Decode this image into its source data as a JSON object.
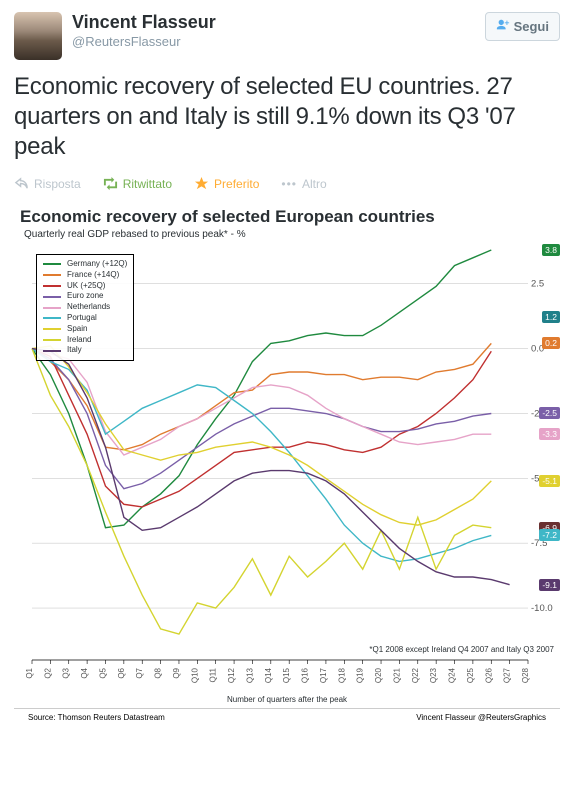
{
  "user": {
    "name": "Vincent Flasseur",
    "handle": "@ReutersFlasseur"
  },
  "follow_label": "Segui",
  "tweet_text": "Economic recovery of selected EU countries. 27 quarters on and Italy is still 9.1% down its Q3 '07 peak",
  "actions": {
    "reply": "Risposta",
    "retweet": "Ritwittato",
    "favorite": "Preferito",
    "more": "Altro"
  },
  "chart": {
    "type": "line",
    "title": "Economic recovery of selected European countries",
    "subtitle": "Quarterly real GDP rebased to previous peak* - %",
    "note": "*Q1 2008 except Ireland Q4 2007 and Italy Q3 2007",
    "x_title": "Number of quarters after the peak",
    "source": "Source: Thomson Reuters Datastream",
    "credit": "Vincent Flasseur @ReutersGraphics",
    "ylim": [
      -12.0,
      3.8
    ],
    "yticks": [
      2.5,
      0.0,
      -2.5,
      -5.0,
      -7.5,
      -10.0
    ],
    "xlabels": [
      "Q1",
      "Q2",
      "Q3",
      "Q4",
      "Q5",
      "Q6",
      "Q7",
      "Q8",
      "Q9",
      "Q10",
      "Q11",
      "Q12",
      "Q13",
      "Q14",
      "Q15",
      "Q16",
      "Q17",
      "Q18",
      "Q19",
      "Q20",
      "Q21",
      "Q22",
      "Q23",
      "Q24",
      "Q25",
      "Q26",
      "Q27",
      "Q28"
    ],
    "grid_color": "#cccccc",
    "background_color": "#ffffff",
    "title_fontsize": 17,
    "label_fontsize": 9,
    "series": [
      {
        "name": "Germany (+12Q)",
        "color": "#1f8a3f",
        "end_val": "3.8",
        "values": [
          0,
          -1.0,
          -2.5,
          -4.5,
          -6.9,
          -6.8,
          -6.1,
          -5.6,
          -4.9,
          -3.7,
          -2.7,
          -1.8,
          -0.5,
          0.2,
          0.3,
          0.5,
          0.6,
          0.5,
          0.5,
          0.9,
          1.4,
          1.9,
          2.4,
          3.2,
          3.5,
          3.8
        ]
      },
      {
        "name": "France (+14Q)",
        "color": "#e07b2f",
        "end_val": "0.2",
        "values": [
          0,
          -0.5,
          -1.2,
          -2.2,
          -3.8,
          -3.9,
          -3.7,
          -3.3,
          -3.0,
          -2.7,
          -2.2,
          -1.7,
          -1.6,
          -1.0,
          -0.9,
          -0.9,
          -1.0,
          -1.0,
          -1.2,
          -1.1,
          -1.1,
          -1.2,
          -0.9,
          -0.8,
          -0.6,
          0.2
        ]
      },
      {
        "name": "UK (+25Q)",
        "color": "#c03030",
        "end_val": null,
        "values": [
          0,
          -0.3,
          -1.8,
          -3.3,
          -5.3,
          -6.0,
          -6.1,
          -5.8,
          -5.5,
          -5.0,
          -4.5,
          -4.0,
          -3.9,
          -3.8,
          -3.8,
          -3.6,
          -3.7,
          -3.9,
          -4.0,
          -3.8,
          -3.3,
          -3.0,
          -2.5,
          -1.9,
          -1.2,
          -0.1
        ]
      },
      {
        "name": "Euro zone",
        "color": "#7a5fa8",
        "end_val": "-2.5",
        "values": [
          0,
          -0.4,
          -1.2,
          -2.5,
          -4.5,
          -5.4,
          -5.2,
          -4.8,
          -4.3,
          -3.8,
          -3.3,
          -2.9,
          -2.6,
          -2.3,
          -2.3,
          -2.4,
          -2.5,
          -2.7,
          -3.0,
          -3.2,
          -3.2,
          -3.1,
          -2.9,
          -2.8,
          -2.6,
          -2.5
        ]
      },
      {
        "name": "Netherlands",
        "color": "#e6a3c8",
        "end_val": "-3.3",
        "values": [
          0,
          -0.2,
          -0.4,
          -1.3,
          -3.2,
          -4.1,
          -3.8,
          -3.5,
          -3.0,
          -2.7,
          -2.3,
          -1.9,
          -1.5,
          -1.4,
          -1.5,
          -1.8,
          -2.3,
          -2.7,
          -3.0,
          -3.3,
          -3.6,
          -3.7,
          -3.6,
          -3.5,
          -3.3,
          -3.3
        ]
      },
      {
        "name": "Portugal",
        "color": "#3fb7c7",
        "end_val": "-7.2",
        "values": [
          0,
          -0.5,
          -0.8,
          -1.6,
          -3.3,
          -2.8,
          -2.3,
          -2.0,
          -1.7,
          -1.4,
          -1.5,
          -2.0,
          -2.5,
          -3.2,
          -4.0,
          -4.9,
          -5.8,
          -6.8,
          -7.5,
          -8.0,
          -8.2,
          -8.1,
          -7.9,
          -7.7,
          -7.4,
          -7.2
        ]
      },
      {
        "name": "Spain",
        "color": "#e0d030",
        "end_val": "-5.1",
        "values": [
          0,
          0.1,
          -0.7,
          -1.7,
          -2.9,
          -3.9,
          -4.1,
          -4.3,
          -4.1,
          -4.0,
          -3.8,
          -3.7,
          -3.6,
          -3.8,
          -4.1,
          -4.5,
          -5.0,
          -5.5,
          -6.0,
          -6.4,
          -6.7,
          -6.8,
          -6.6,
          -6.2,
          -5.8,
          -5.1
        ]
      },
      {
        "name": "Ireland",
        "color": "#d4d430",
        "end_val": "-6.9",
        "values": [
          0,
          -1.8,
          -3.0,
          -4.5,
          -6.3,
          -8.0,
          -9.5,
          -10.8,
          -11.0,
          -9.8,
          -10.0,
          -9.2,
          -8.1,
          -9.5,
          -8.0,
          -8.8,
          -8.2,
          -7.5,
          -8.5,
          -7.0,
          -8.5,
          -6.5,
          -8.5,
          -7.2,
          -6.8,
          -6.9
        ],
        "dark": true
      },
      {
        "name": "Italy",
        "color": "#5a3a6e",
        "end_val": "-9.1",
        "values": [
          0,
          -0.1,
          -0.6,
          -1.9,
          -3.8,
          -6.5,
          -7.0,
          -6.9,
          -6.5,
          -6.1,
          -5.6,
          -5.1,
          -4.8,
          -4.7,
          -4.7,
          -4.8,
          -5.1,
          -5.6,
          -6.3,
          -7.0,
          -7.7,
          -8.2,
          -8.6,
          -8.8,
          -8.8,
          -8.9,
          -9.1
        ]
      }
    ],
    "end_badges": [
      {
        "val": "3.8",
        "color": "#1f8a3f"
      },
      {
        "val": "1.2",
        "color": "#20808a"
      },
      {
        "val": "0.2",
        "color": "#e07b2f"
      },
      {
        "val": "-2.5",
        "color": "#7a5fa8"
      },
      {
        "val": "-3.3",
        "color": "#e6a3c8"
      },
      {
        "val": "-5.1",
        "color": "#e0d030"
      },
      {
        "val": "-6.9",
        "color": "#6a3030"
      },
      {
        "val": "-7.2",
        "color": "#3fb7c7"
      },
      {
        "val": "-9.1",
        "color": "#5a3a6e"
      }
    ]
  }
}
